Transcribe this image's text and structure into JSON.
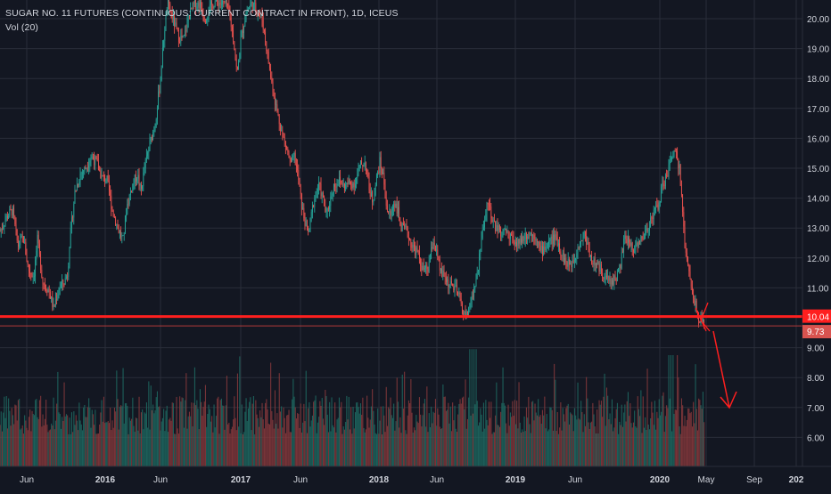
{
  "header": {
    "symbol": "SUGAR NO. 11 FUTURES (CONTINUOUS: CURRENT CONTRACT IN FRONT), 1D, ICEUS",
    "indicator": "Vol (20)"
  },
  "colors": {
    "background": "#131722",
    "grid": "#2a2e39",
    "up": "#26a69a",
    "down": "#ef5350",
    "vol_up": "#1e6b63",
    "vol_down": "#8a3a3c",
    "axis_text": "#d1d4dc",
    "annotation": "#ff1f1f"
  },
  "chart_data": {
    "type": "candlestick",
    "y_axis": {
      "ticks": [
        "20.00",
        "19.00",
        "18.00",
        "17.00",
        "16.00",
        "15.00",
        "14.00",
        "13.00",
        "12.00",
        "11.00",
        "9.00",
        "8.00",
        "7.00",
        "6.00"
      ],
      "min": 5.5,
      "max": 20.6
    },
    "x_axis": {
      "ticks": [
        "Jun",
        "2016",
        "Jun",
        "2017",
        "Jun",
        "2018",
        "Jun",
        "2019",
        "Jun",
        "2020",
        "May",
        "Sep",
        "202"
      ]
    },
    "price_levels": [
      {
        "label": "10.04",
        "value": 10.04,
        "style": "annotation-line"
      },
      {
        "label": "9.73",
        "value": 9.73,
        "style": "last-price"
      }
    ],
    "price_path": [
      [
        0,
        12.9
      ],
      [
        8,
        13.4
      ],
      [
        14,
        13.6
      ],
      [
        20,
        12.4
      ],
      [
        26,
        12.7
      ],
      [
        32,
        11.6
      ],
      [
        38,
        11.4
      ],
      [
        42,
        12.6
      ],
      [
        48,
        11.2
      ],
      [
        55,
        10.9
      ],
      [
        60,
        10.3
      ],
      [
        66,
        11.0
      ],
      [
        72,
        11.2
      ],
      [
        76,
        11.5
      ],
      [
        78,
        12.5
      ],
      [
        84,
        14.2
      ],
      [
        90,
        14.8
      ],
      [
        96,
        15.0
      ],
      [
        102,
        15.4
      ],
      [
        108,
        15.2
      ],
      [
        114,
        14.7
      ],
      [
        120,
        14.6
      ],
      [
        126,
        13.6
      ],
      [
        132,
        13.0
      ],
      [
        138,
        12.6
      ],
      [
        142,
        13.7
      ],
      [
        148,
        14.4
      ],
      [
        154,
        14.8
      ],
      [
        158,
        14.2
      ],
      [
        162,
        15.0
      ],
      [
        168,
        15.8
      ],
      [
        174,
        16.5
      ],
      [
        180,
        18.0
      ],
      [
        184,
        19.5
      ],
      [
        188,
        20.5
      ],
      [
        194,
        20.0
      ],
      [
        200,
        19.4
      ],
      [
        206,
        19.3
      ],
      [
        212,
        20.1
      ],
      [
        218,
        20.5
      ],
      [
        224,
        20.5
      ],
      [
        230,
        20.0
      ],
      [
        236,
        20.4
      ],
      [
        242,
        20.6
      ],
      [
        248,
        20.5
      ],
      [
        254,
        20.5
      ],
      [
        258,
        20.0
      ],
      [
        262,
        19.3
      ],
      [
        266,
        18.1
      ],
      [
        270,
        19.3
      ],
      [
        276,
        20.2
      ],
      [
        282,
        20.5
      ],
      [
        288,
        20.3
      ],
      [
        294,
        20.0
      ],
      [
        298,
        19.2
      ],
      [
        304,
        18.0
      ],
      [
        310,
        17.0
      ],
      [
        316,
        16.2
      ],
      [
        322,
        15.6
      ],
      [
        326,
        15.1
      ],
      [
        330,
        15.4
      ],
      [
        334,
        14.8
      ],
      [
        338,
        13.8
      ],
      [
        342,
        13.2
      ],
      [
        346,
        12.8
      ],
      [
        350,
        13.6
      ],
      [
        354,
        14.2
      ],
      [
        358,
        14.4
      ],
      [
        362,
        14.0
      ],
      [
        366,
        13.4
      ],
      [
        370,
        13.9
      ],
      [
        374,
        14.4
      ],
      [
        380,
        14.6
      ],
      [
        386,
        14.4
      ],
      [
        392,
        14.5
      ],
      [
        398,
        14.5
      ],
      [
        404,
        15.1
      ],
      [
        410,
        15.2
      ],
      [
        414,
        14.3
      ],
      [
        418,
        13.9
      ],
      [
        422,
        14.6
      ],
      [
        426,
        15.2
      ],
      [
        430,
        14.7
      ],
      [
        434,
        13.6
      ],
      [
        438,
        13.4
      ],
      [
        442,
        13.9
      ],
      [
        446,
        13.6
      ],
      [
        450,
        13.0
      ],
      [
        456,
        12.9
      ],
      [
        462,
        12.4
      ],
      [
        468,
        12.2
      ],
      [
        474,
        11.6
      ],
      [
        480,
        11.6
      ],
      [
        486,
        12.6
      ],
      [
        490,
        12.1
      ],
      [
        494,
        11.5
      ],
      [
        498,
        11.4
      ],
      [
        504,
        11.1
      ],
      [
        510,
        11.0
      ],
      [
        516,
        10.6
      ],
      [
        520,
        10.1
      ],
      [
        524,
        10.1
      ],
      [
        528,
        10.6
      ],
      [
        532,
        11.0
      ],
      [
        536,
        11.6
      ],
      [
        540,
        12.6
      ],
      [
        544,
        13.5
      ],
      [
        548,
        13.9
      ],
      [
        552,
        13.3
      ],
      [
        556,
        13.0
      ],
      [
        560,
        12.9
      ],
      [
        566,
        12.9
      ],
      [
        572,
        12.8
      ],
      [
        578,
        12.4
      ],
      [
        584,
        12.6
      ],
      [
        590,
        12.8
      ],
      [
        596,
        12.8
      ],
      [
        602,
        12.7
      ],
      [
        606,
        12.2
      ],
      [
        612,
        12.4
      ],
      [
        618,
        12.6
      ],
      [
        624,
        12.7
      ],
      [
        628,
        12.3
      ],
      [
        632,
        12.0
      ],
      [
        636,
        11.8
      ],
      [
        640,
        11.8
      ],
      [
        644,
        12.0
      ],
      [
        648,
        12.4
      ],
      [
        652,
        12.6
      ],
      [
        656,
        12.8
      ],
      [
        660,
        12.3
      ],
      [
        664,
        11.9
      ],
      [
        668,
        11.8
      ],
      [
        674,
        11.6
      ],
      [
        680,
        11.3
      ],
      [
        686,
        11.2
      ],
      [
        692,
        11.4
      ],
      [
        696,
        11.8
      ],
      [
        700,
        12.6
      ],
      [
        704,
        12.6
      ],
      [
        708,
        12.4
      ],
      [
        712,
        12.3
      ],
      [
        716,
        12.6
      ],
      [
        720,
        12.6
      ],
      [
        726,
        13.0
      ],
      [
        730,
        13.3
      ],
      [
        734,
        13.6
      ],
      [
        738,
        13.7
      ],
      [
        742,
        14.3
      ],
      [
        746,
        14.6
      ],
      [
        750,
        15.0
      ],
      [
        754,
        15.5
      ],
      [
        758,
        15.5
      ],
      [
        762,
        15.0
      ],
      [
        764,
        14.2
      ],
      [
        766,
        13.4
      ],
      [
        768,
        12.4
      ],
      [
        770,
        12.0
      ],
      [
        772,
        11.8
      ],
      [
        774,
        11.4
      ],
      [
        776,
        10.8
      ],
      [
        778,
        10.6
      ],
      [
        780,
        10.5
      ],
      [
        782,
        10.3
      ],
      [
        784,
        10.0
      ],
      [
        786,
        9.9
      ],
      [
        788,
        9.8
      ],
      [
        790,
        9.73
      ]
    ],
    "volume_range": {
      "min": 5.5,
      "max": 9.2
    }
  }
}
